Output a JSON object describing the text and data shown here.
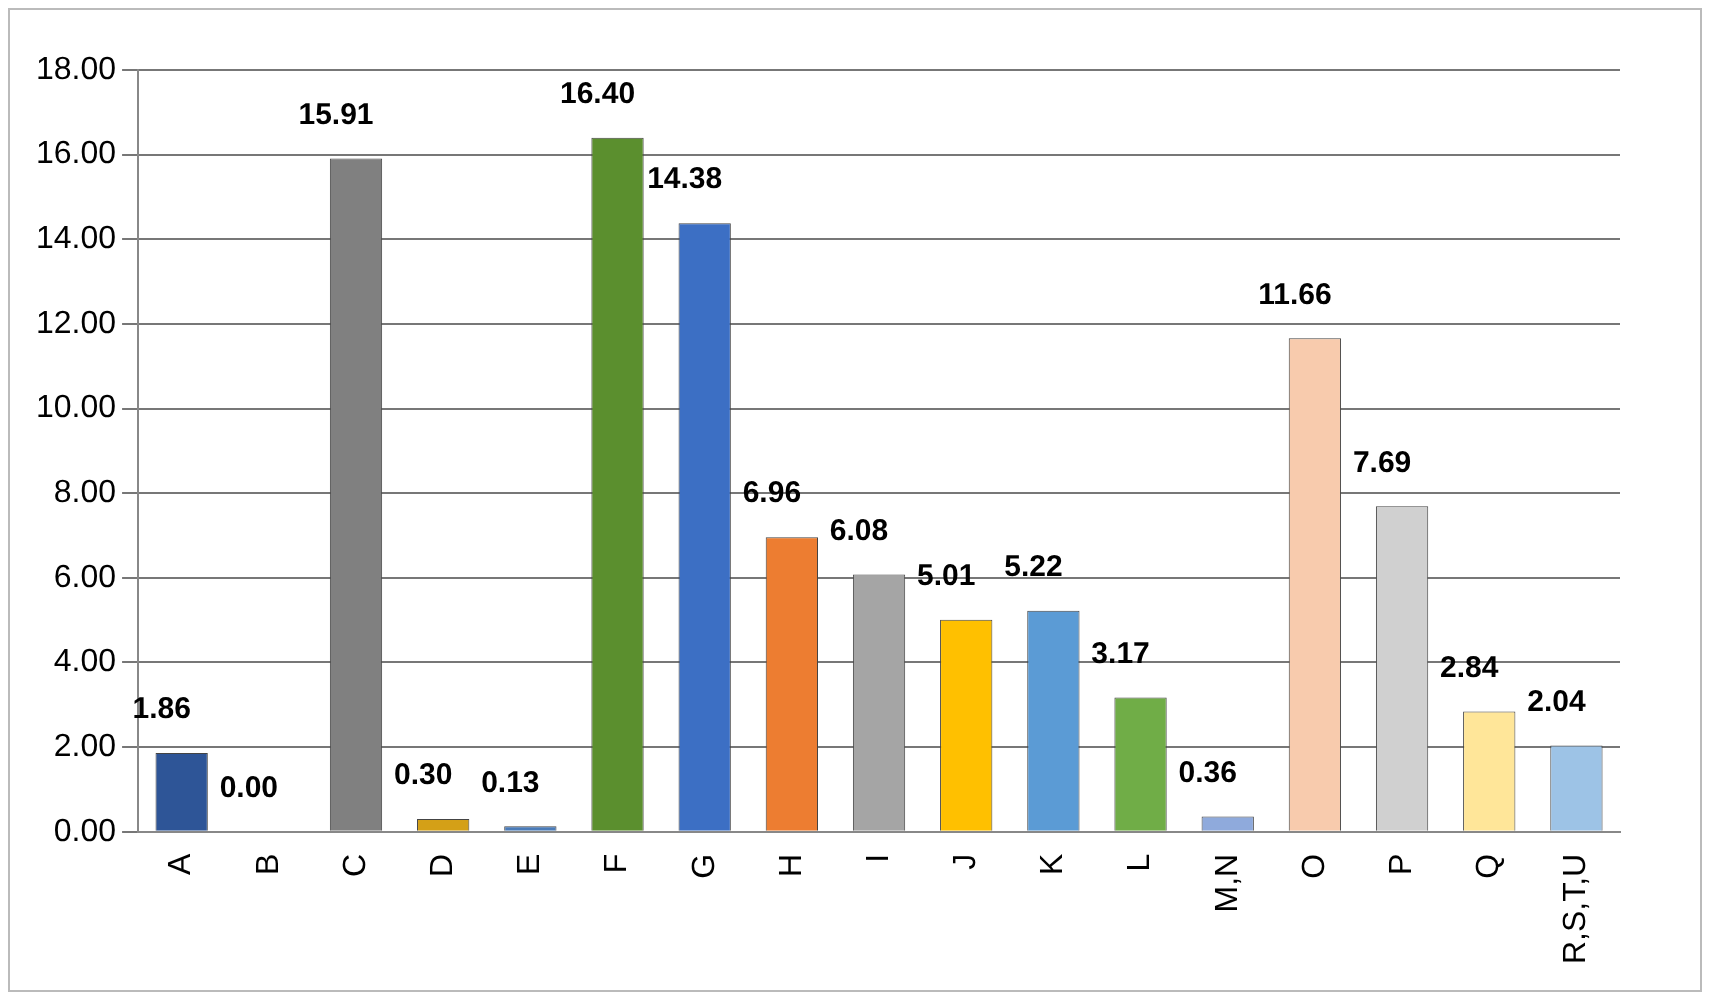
{
  "chart_data": {
    "type": "bar",
    "categories": [
      "A",
      "B",
      "C",
      "D",
      "E",
      "F",
      "G",
      "H",
      "I",
      "J",
      "K",
      "L",
      "M,N",
      "O",
      "P",
      "Q",
      "R,S,T,U"
    ],
    "values": [
      1.86,
      0.0,
      15.91,
      0.3,
      0.13,
      16.4,
      14.38,
      6.96,
      6.08,
      5.01,
      5.22,
      3.17,
      0.36,
      11.66,
      7.69,
      2.84,
      2.04
    ],
    "value_labels": [
      "1.86",
      "0.00",
      "15.91",
      "0.30",
      "0.13",
      "16.40",
      "14.38",
      "6.96",
      "6.08",
      "5.01",
      "5.22",
      "3.17",
      "0.36",
      "11.66",
      "7.69",
      "2.84",
      "2.04"
    ],
    "colors": [
      "#2e5597",
      "#c55a11",
      "#808080",
      "#d4a017",
      "#4a7bb8",
      "#5b8f2e",
      "#3c6fc4",
      "#ed7d31",
      "#a5a5a5",
      "#ffc000",
      "#5b9bd5",
      "#70ad47",
      "#8faadc",
      "#f8cbad",
      "#d0d0d0",
      "#ffe699",
      "#9dc3e6"
    ],
    "ylim": [
      0,
      18
    ],
    "yticks": [
      {
        "value": 0,
        "label": "0.00"
      },
      {
        "value": 2,
        "label": "2.00"
      },
      {
        "value": 4,
        "label": "4.00"
      },
      {
        "value": 6,
        "label": "6.00"
      },
      {
        "value": 8,
        "label": "8.00"
      },
      {
        "value": 10,
        "label": "10.00"
      },
      {
        "value": 12,
        "label": "12.00"
      },
      {
        "value": 14,
        "label": "14.00"
      },
      {
        "value": 16,
        "label": "16.00"
      },
      {
        "value": 18,
        "label": "18.00"
      }
    ],
    "grid": "y"
  }
}
